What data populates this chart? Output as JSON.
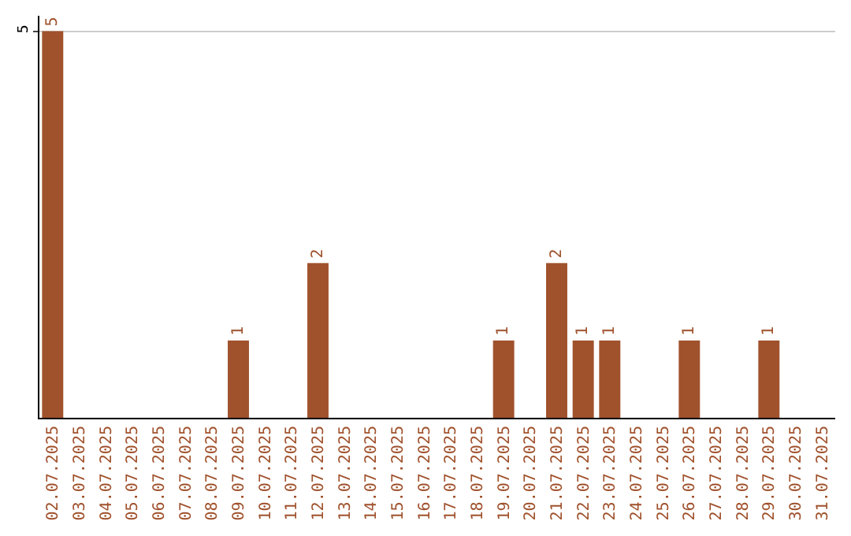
{
  "chart_data": {
    "type": "bar",
    "categories": [
      "02.07.2025",
      "03.07.2025",
      "04.07.2025",
      "05.07.2025",
      "06.07.2025",
      "07.07.2025",
      "08.07.2025",
      "09.07.2025",
      "10.07.2025",
      "11.07.2025",
      "12.07.2025",
      "13.07.2025",
      "14.07.2025",
      "15.07.2025",
      "16.07.2025",
      "17.07.2025",
      "18.07.2025",
      "19.07.2025",
      "20.07.2025",
      "21.07.2025",
      "22.07.2025",
      "23.07.2025",
      "24.07.2025",
      "25.07.2025",
      "26.07.2025",
      "27.07.2025",
      "28.07.2025",
      "29.07.2025",
      "30.07.2025",
      "31.07.2025"
    ],
    "values": [
      5,
      0,
      0,
      0,
      0,
      0,
      0,
      1,
      0,
      0,
      2,
      0,
      0,
      0,
      0,
      0,
      0,
      1,
      0,
      2,
      1,
      1,
      0,
      0,
      1,
      0,
      0,
      1,
      0,
      0
    ],
    "value_labels": [
      "5",
      null,
      null,
      null,
      null,
      null,
      null,
      "1",
      null,
      null,
      "2",
      null,
      null,
      null,
      null,
      null,
      null,
      "1",
      null,
      "2",
      "1",
      "1",
      null,
      null,
      "1",
      null,
      null,
      "1",
      null,
      null
    ],
    "color": "#a0522d",
    "ylim": [
      0,
      5.2
    ],
    "yticks": [
      5
    ],
    "grid": "y",
    "legend": false
  }
}
